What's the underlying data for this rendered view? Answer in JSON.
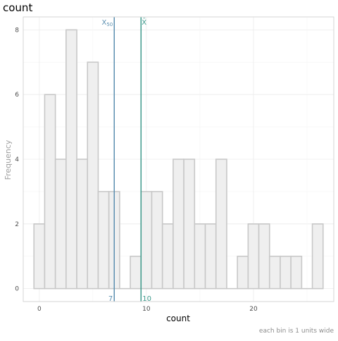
{
  "chart_data": {
    "type": "bar",
    "title": "count",
    "xlabel": "count",
    "ylabel": "Frequency",
    "caption": "each bin is 1 units wide",
    "bin_width": 1,
    "bins": [
      {
        "x": 0,
        "count": 2
      },
      {
        "x": 1,
        "count": 6
      },
      {
        "x": 2,
        "count": 4
      },
      {
        "x": 3,
        "count": 8
      },
      {
        "x": 4,
        "count": 4
      },
      {
        "x": 5,
        "count": 7
      },
      {
        "x": 6,
        "count": 3
      },
      {
        "x": 7,
        "count": 3
      },
      {
        "x": 8,
        "count": 0
      },
      {
        "x": 9,
        "count": 1
      },
      {
        "x": 10,
        "count": 3
      },
      {
        "x": 11,
        "count": 3
      },
      {
        "x": 12,
        "count": 2
      },
      {
        "x": 13,
        "count": 4
      },
      {
        "x": 14,
        "count": 4
      },
      {
        "x": 15,
        "count": 2
      },
      {
        "x": 16,
        "count": 2
      },
      {
        "x": 17,
        "count": 4
      },
      {
        "x": 18,
        "count": 0
      },
      {
        "x": 19,
        "count": 1
      },
      {
        "x": 20,
        "count": 2
      },
      {
        "x": 21,
        "count": 2
      },
      {
        "x": 22,
        "count": 1
      },
      {
        "x": 23,
        "count": 1
      },
      {
        "x": 24,
        "count": 1
      },
      {
        "x": 25,
        "count": 0
      },
      {
        "x": 26,
        "count": 2
      }
    ],
    "x_ticks": [
      "0",
      "10",
      "20"
    ],
    "y_ticks": [
      "0",
      "2",
      "4",
      "6",
      "8"
    ],
    "xlim": [
      -1.5,
      27.5
    ],
    "ylim": [
      -0.4,
      8.4
    ],
    "grid": true,
    "reference_lines": [
      {
        "name": "median",
        "symbol": "X",
        "subscript": "50",
        "value": 7,
        "value_label": "7",
        "color": "#5b8fb0"
      },
      {
        "name": "mean",
        "symbol": "X̄",
        "subscript": "",
        "value": 9.5,
        "value_label": "10",
        "color": "#3e9a8c"
      }
    ],
    "colors": {
      "bar_fill": "#efefef",
      "bar_stroke": "#c8c8c8",
      "grid": "#ebebeb",
      "panel_border": "#d6d6d6"
    }
  }
}
